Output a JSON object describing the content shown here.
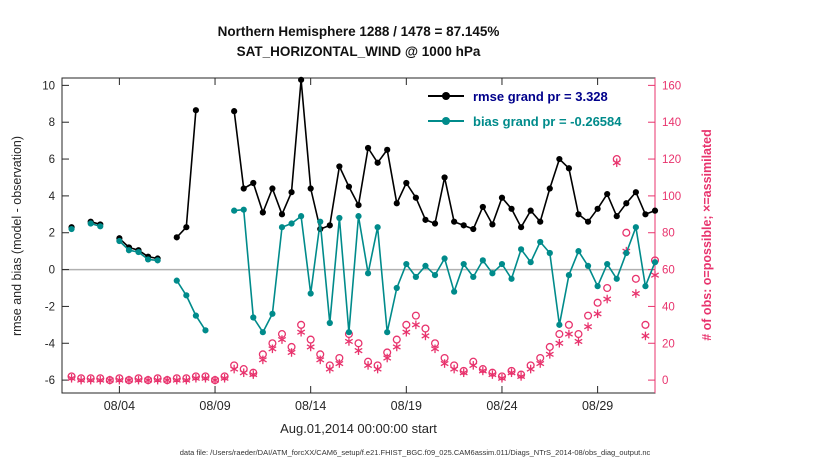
{
  "figure": {
    "title_line1": "Northern Hemisphere 1288 / 1478 = 87.145%",
    "title_line2": "SAT_HORIZONTAL_WIND @ 1000 hPa",
    "xlabel": "Aug.01,2014 00:00:00 start",
    "ylabel_left": "rmse and bias (model - observation)",
    "ylabel_right": "# of obs: o=possible; ×=assimilated",
    "footer": "data file: /Users/raeder/DAI/ATM_forcXX/CAM6_setup/f.e21.FHIST_BGC.f09_025.CAM6assim.011/Diags_NTrS_2014-08/obs_diag_output.nc",
    "legend": [
      {
        "label": "rmse grand pr = 3.328",
        "series": "rmse",
        "color": "#000000",
        "text_color": "#00008b"
      },
      {
        "label": "bias grand pr = -0.26584",
        "series": "bias",
        "color": "#008b8b",
        "text_color": "#008b8b"
      }
    ]
  },
  "chart_data": {
    "type": "line",
    "title": "Northern Hemisphere 1288 / 1478 = 87.145% | SAT_HORIZONTAL_WIND @ 1000 hPa",
    "x_unit": "days since Aug 1, 2014 00:00 UTC",
    "x_range": [
      0,
      31
    ],
    "x_ticks": {
      "values": [
        3,
        8,
        13,
        18,
        23,
        28
      ],
      "labels": [
        "08/04",
        "08/09",
        "08/14",
        "08/19",
        "08/24",
        "08/29"
      ]
    },
    "left_axis": {
      "label": "rmse and bias (model - observation)",
      "range": [
        -6.7,
        10.4
      ],
      "ticks": [
        -6,
        -4,
        -2,
        0,
        2,
        4,
        6,
        8,
        10
      ],
      "color": "#262626"
    },
    "right_axis": {
      "label": "# of obs: o=possible; ×=assimilated",
      "range": [
        -7,
        164
      ],
      "ticks": [
        0,
        20,
        40,
        60,
        80,
        100,
        120,
        140,
        160
      ],
      "color": "#e8336d"
    },
    "zero_line": {
      "value": 0,
      "color": "#b0b0b0"
    },
    "grid": false,
    "legend_position": "top-right-inside",
    "obs_color": "#e8336d",
    "x": [
      0,
      0.5,
      1,
      1.5,
      2,
      2.5,
      3,
      3.5,
      4,
      4.5,
      5,
      5.5,
      6,
      6.5,
      7,
      7.5,
      8,
      8.5,
      9,
      9.5,
      10,
      10.5,
      11,
      11.5,
      12,
      12.5,
      13,
      13.5,
      14,
      14.5,
      15,
      15.5,
      16,
      16.5,
      17,
      17.5,
      18,
      18.5,
      19,
      19.5,
      20,
      20.5,
      21,
      21.5,
      22,
      22.5,
      23,
      23.5,
      24,
      24.5,
      25,
      25.5,
      26,
      26.5,
      27,
      27.5,
      28,
      28.5,
      29,
      29.5,
      30,
      30.5,
      31
    ],
    "series": [
      {
        "name": "rmse",
        "axis": "left",
        "style": "line-markers",
        "marker": "circle-filled",
        "color": "#000000",
        "grand_pr": 3.328,
        "values": [
          null,
          2.3,
          null,
          2.6,
          2.45,
          null,
          1.7,
          1.2,
          1.05,
          0.7,
          0.6,
          null,
          1.75,
          2.3,
          8.65,
          null,
          null,
          null,
          8.6,
          4.4,
          4.7,
          3.1,
          4.4,
          3.0,
          4.2,
          10.3,
          4.4,
          2.2,
          2.4,
          5.6,
          4.5,
          3.5,
          6.6,
          5.8,
          6.5,
          3.6,
          4.7,
          3.9,
          2.7,
          2.5,
          5.0,
          2.6,
          2.4,
          2.2,
          3.4,
          2.45,
          3.9,
          3.3,
          2.3,
          3.2,
          2.6,
          4.4,
          6.0,
          5.5,
          3.0,
          2.6,
          3.3,
          4.1,
          2.9,
          3.6,
          4.2,
          3.0,
          3.2
        ]
      },
      {
        "name": "bias",
        "axis": "left",
        "style": "line-markers",
        "marker": "circle-filled",
        "color": "#008b8b",
        "grand_pr": -0.26584,
        "values": [
          null,
          2.2,
          null,
          2.5,
          2.35,
          null,
          1.55,
          1.05,
          0.95,
          0.55,
          0.5,
          null,
          -0.6,
          -1.4,
          -2.5,
          -3.3,
          null,
          null,
          3.2,
          3.25,
          -2.6,
          -3.4,
          -2.4,
          2.3,
          2.5,
          2.9,
          -1.3,
          2.6,
          -2.9,
          2.8,
          -3.4,
          2.9,
          -0.2,
          2.3,
          -3.4,
          -1.0,
          0.3,
          -0.4,
          0.2,
          -0.3,
          0.6,
          -1.2,
          0.3,
          -0.4,
          0.5,
          -0.2,
          0.3,
          -0.5,
          1.1,
          0.4,
          1.5,
          0.9,
          -3.0,
          -0.3,
          1.0,
          0.2,
          -0.9,
          0.3,
          -0.5,
          0.9,
          2.3,
          -0.9,
          0.4
        ]
      },
      {
        "name": "possible",
        "axis": "right",
        "style": "scatter",
        "marker": "circle-open",
        "color": "#e8336d",
        "values": [
          null,
          2,
          1,
          1,
          1,
          0,
          1,
          0,
          1,
          0,
          1,
          0,
          1,
          1,
          2,
          2,
          0,
          2,
          8,
          6,
          4,
          14,
          20,
          25,
          18,
          30,
          22,
          14,
          8,
          12,
          25,
          20,
          10,
          8,
          15,
          22,
          30,
          35,
          28,
          20,
          12,
          8,
          5,
          10,
          6,
          4,
          2,
          5,
          3,
          8,
          12,
          18,
          25,
          30,
          25,
          35,
          42,
          50,
          120,
          80,
          55,
          30,
          65
        ]
      },
      {
        "name": "assimilated",
        "axis": "right",
        "style": "scatter",
        "marker": "asterisk",
        "color": "#e8336d",
        "values": [
          null,
          1,
          0,
          0,
          0,
          0,
          0,
          0,
          0,
          0,
          0,
          0,
          0,
          0,
          1,
          1,
          0,
          1,
          6,
          4,
          3,
          11,
          17,
          22,
          15,
          26,
          18,
          11,
          6,
          9,
          21,
          16,
          8,
          6,
          12,
          18,
          26,
          30,
          24,
          17,
          9,
          6,
          4,
          8,
          5,
          3,
          1,
          4,
          2,
          6,
          9,
          14,
          20,
          25,
          21,
          29,
          36,
          44,
          118,
          70,
          47,
          24,
          57
        ]
      }
    ]
  }
}
